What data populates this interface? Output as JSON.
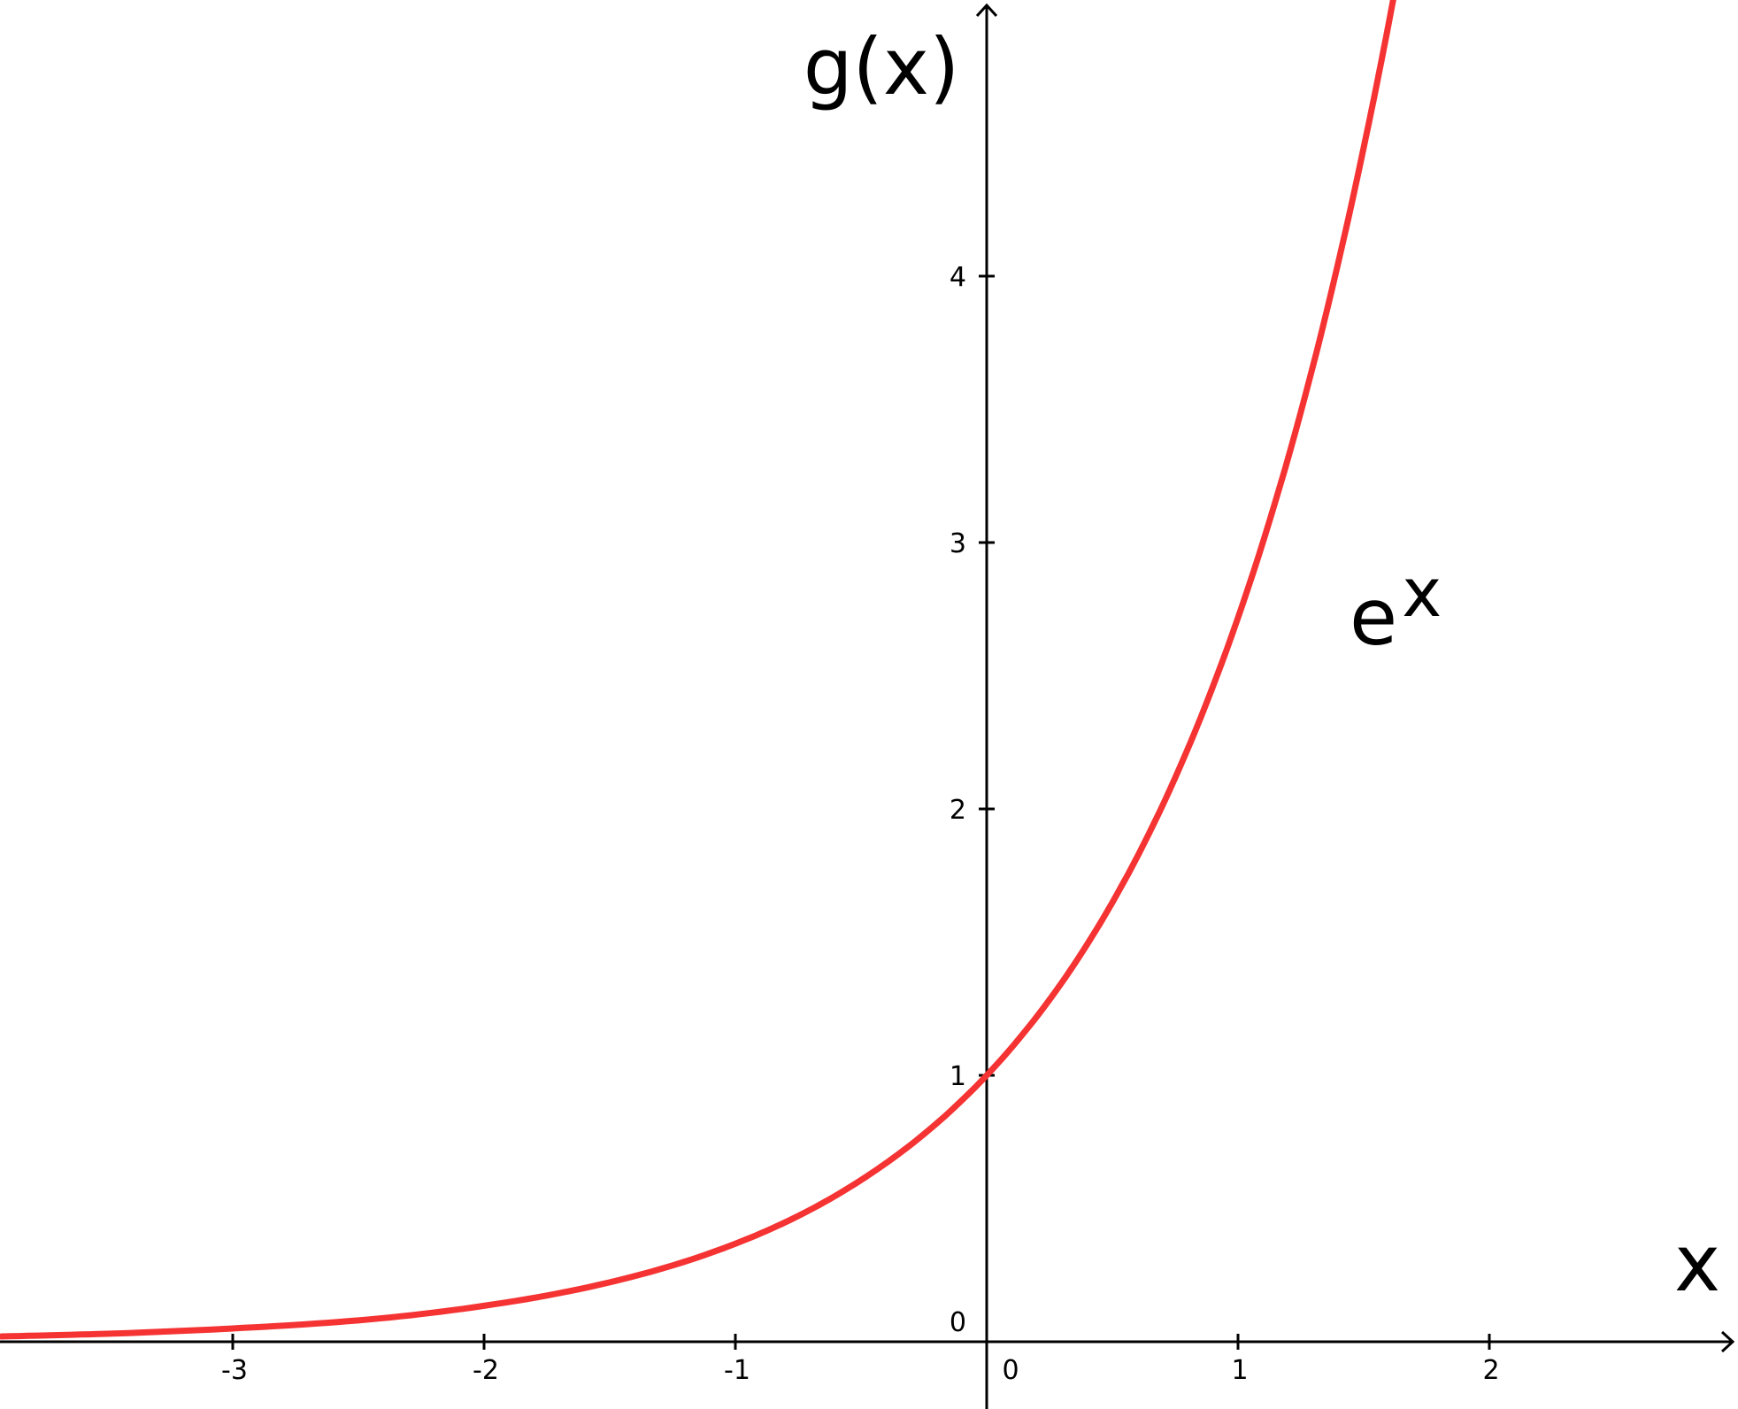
{
  "chart_data": {
    "type": "line",
    "title": "",
    "xlabel": "x",
    "ylabel": "g(x)",
    "xlim": [
      -3.92,
      2.97
    ],
    "ylim": [
      -0.26,
      5.04
    ],
    "grid": false,
    "x_ticks": [
      {
        "value": -3,
        "label": "-3"
      },
      {
        "value": -2,
        "label": "-2"
      },
      {
        "value": -1,
        "label": "-1"
      },
      {
        "value": 0,
        "label": "0"
      },
      {
        "value": 1,
        "label": "1"
      },
      {
        "value": 2,
        "label": "2"
      }
    ],
    "y_ticks": [
      {
        "value": 0,
        "label": "0"
      },
      {
        "value": 1,
        "label": "1"
      },
      {
        "value": 2,
        "label": "2"
      },
      {
        "value": 3,
        "label": "3"
      },
      {
        "value": 4,
        "label": "4"
      }
    ],
    "series": [
      {
        "label_base": "e",
        "label_exponent": "x",
        "color": "#f53333",
        "x": [
          -3.92,
          -3.5,
          -3.0,
          -2.5,
          -2.0,
          -1.5,
          -1.0,
          -0.75,
          -0.5,
          -0.25,
          0.0,
          0.25,
          0.5,
          0.75,
          1.0,
          1.25,
          1.5,
          1.62
        ],
        "y": [
          0.02,
          0.03,
          0.05,
          0.08,
          0.135,
          0.223,
          0.368,
          0.472,
          0.607,
          0.779,
          1.0,
          1.284,
          1.649,
          2.117,
          2.718,
          3.49,
          4.482,
          5.05
        ]
      }
    ]
  }
}
